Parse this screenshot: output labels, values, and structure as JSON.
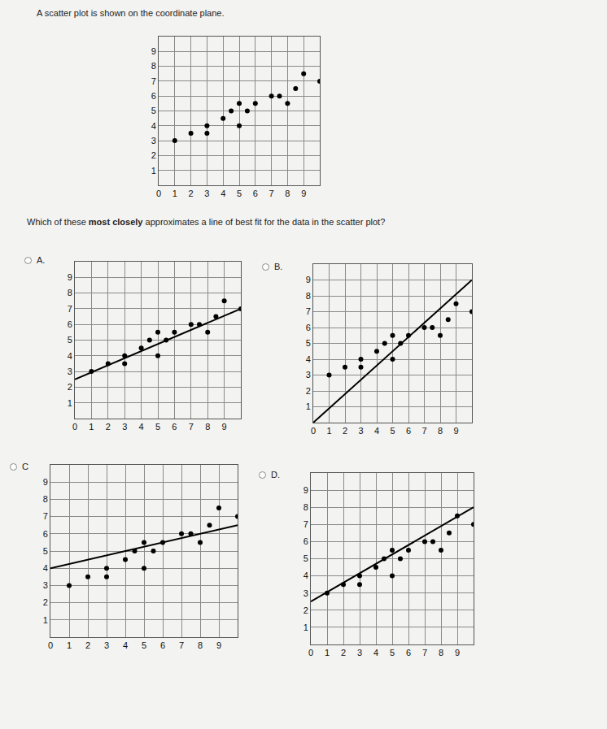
{
  "intro": "A scatter plot is shown on the coordinate plane.",
  "question": {
    "before": "Which of these ",
    "bold": "most closely",
    "after": " approximates a line of best fit for the data in the scatter plot?"
  },
  "chart_data": [
    {
      "type": "scatter",
      "x": [
        1,
        2,
        3,
        3,
        4,
        4.5,
        5,
        5,
        5.5,
        6,
        7,
        7.5,
        8,
        8.5,
        9,
        10
      ],
      "values": [
        3,
        3.5,
        4,
        3.5,
        4.5,
        5,
        5.5,
        4,
        5,
        5.5,
        6,
        6,
        5.5,
        6.5,
        7.5,
        7
      ],
      "xlim": [
        0,
        10
      ],
      "ylim": [
        0,
        10
      ],
      "xticks": [
        0,
        1,
        2,
        3,
        4,
        5,
        6,
        7,
        8,
        9
      ],
      "yticks": [
        1,
        2,
        3,
        4,
        5,
        6,
        7,
        8,
        9
      ],
      "grid": true,
      "color": "#000000",
      "marker": "circle"
    },
    {
      "type": "scatter",
      "label": "A.",
      "x": [
        1,
        2,
        3,
        3,
        4,
        4.5,
        5,
        5,
        5.5,
        6,
        7,
        7.5,
        8,
        8.5,
        9,
        10
      ],
      "values": [
        3,
        3.5,
        4,
        3.5,
        4.5,
        5,
        5.5,
        4,
        5,
        5.5,
        6,
        6,
        5.5,
        6.5,
        7.5,
        7
      ],
      "fit_line": {
        "x": [
          0,
          10
        ],
        "values": [
          2.5,
          7
        ]
      },
      "xlim": [
        0,
        10
      ],
      "ylim": [
        0,
        10
      ],
      "xticks": [
        0,
        1,
        2,
        3,
        4,
        5,
        6,
        7,
        8,
        9
      ],
      "yticks": [
        1,
        2,
        3,
        4,
        5,
        6,
        7,
        8,
        9
      ],
      "grid": true,
      "color": "#000000",
      "marker": "circle",
      "line_style": "solid"
    },
    {
      "type": "scatter",
      "label": "B.",
      "x": [
        1,
        2,
        3,
        3,
        4,
        4.5,
        5,
        5,
        5.5,
        6,
        7,
        7.5,
        8,
        8.5,
        9,
        10
      ],
      "values": [
        3,
        3.5,
        4,
        3.5,
        4.5,
        5,
        5.5,
        4,
        5,
        5.5,
        6,
        6,
        5.5,
        6.5,
        7.5,
        7
      ],
      "fit_line": {
        "x": [
          0,
          10
        ],
        "values": [
          0,
          9
        ]
      },
      "xlim": [
        0,
        10
      ],
      "ylim": [
        0,
        10
      ],
      "xticks": [
        0,
        1,
        2,
        3,
        4,
        5,
        6,
        7,
        8,
        9
      ],
      "yticks": [
        1,
        2,
        3,
        4,
        5,
        6,
        7,
        8,
        9
      ],
      "grid": true,
      "color": "#000000",
      "marker": "circle",
      "line_style": "solid"
    },
    {
      "type": "scatter",
      "label": "C",
      "x": [
        1,
        2,
        3,
        3,
        4,
        4.5,
        5,
        5,
        5.5,
        6,
        7,
        7.5,
        8,
        8.5,
        9,
        10
      ],
      "values": [
        3,
        3.5,
        4,
        3.5,
        4.5,
        5,
        5.5,
        4,
        5,
        5.5,
        6,
        6,
        5.5,
        6.5,
        7.5,
        7
      ],
      "fit_line": {
        "x": [
          0,
          10
        ],
        "values": [
          4,
          6.5
        ]
      },
      "xlim": [
        0,
        10
      ],
      "ylim": [
        0,
        10
      ],
      "xticks": [
        0,
        1,
        2,
        3,
        4,
        5,
        6,
        7,
        8,
        9
      ],
      "yticks": [
        1,
        2,
        3,
        4,
        5,
        6,
        7,
        8,
        9
      ],
      "grid": true,
      "color": "#000000",
      "marker": "circle",
      "line_style": "solid"
    },
    {
      "type": "scatter",
      "label": "D.",
      "x": [
        1,
        2,
        3,
        3,
        4,
        4.5,
        5,
        5,
        5.5,
        6,
        7,
        7.5,
        8,
        8.5,
        9,
        10
      ],
      "values": [
        3,
        3.5,
        4,
        3.5,
        4.5,
        5,
        5.5,
        4,
        5,
        5.5,
        6,
        6,
        5.5,
        6.5,
        7.5,
        7
      ],
      "fit_line": {
        "x": [
          0,
          10
        ],
        "values": [
          2.5,
          8
        ]
      },
      "xlim": [
        0,
        10
      ],
      "ylim": [
        0,
        10
      ],
      "xticks": [
        0,
        1,
        2,
        3,
        4,
        5,
        6,
        7,
        8,
        9
      ],
      "yticks": [
        1,
        2,
        3,
        4,
        5,
        6,
        7,
        8,
        9
      ],
      "grid": true,
      "color": "#000000",
      "marker": "circle",
      "line_style": "solid"
    }
  ]
}
